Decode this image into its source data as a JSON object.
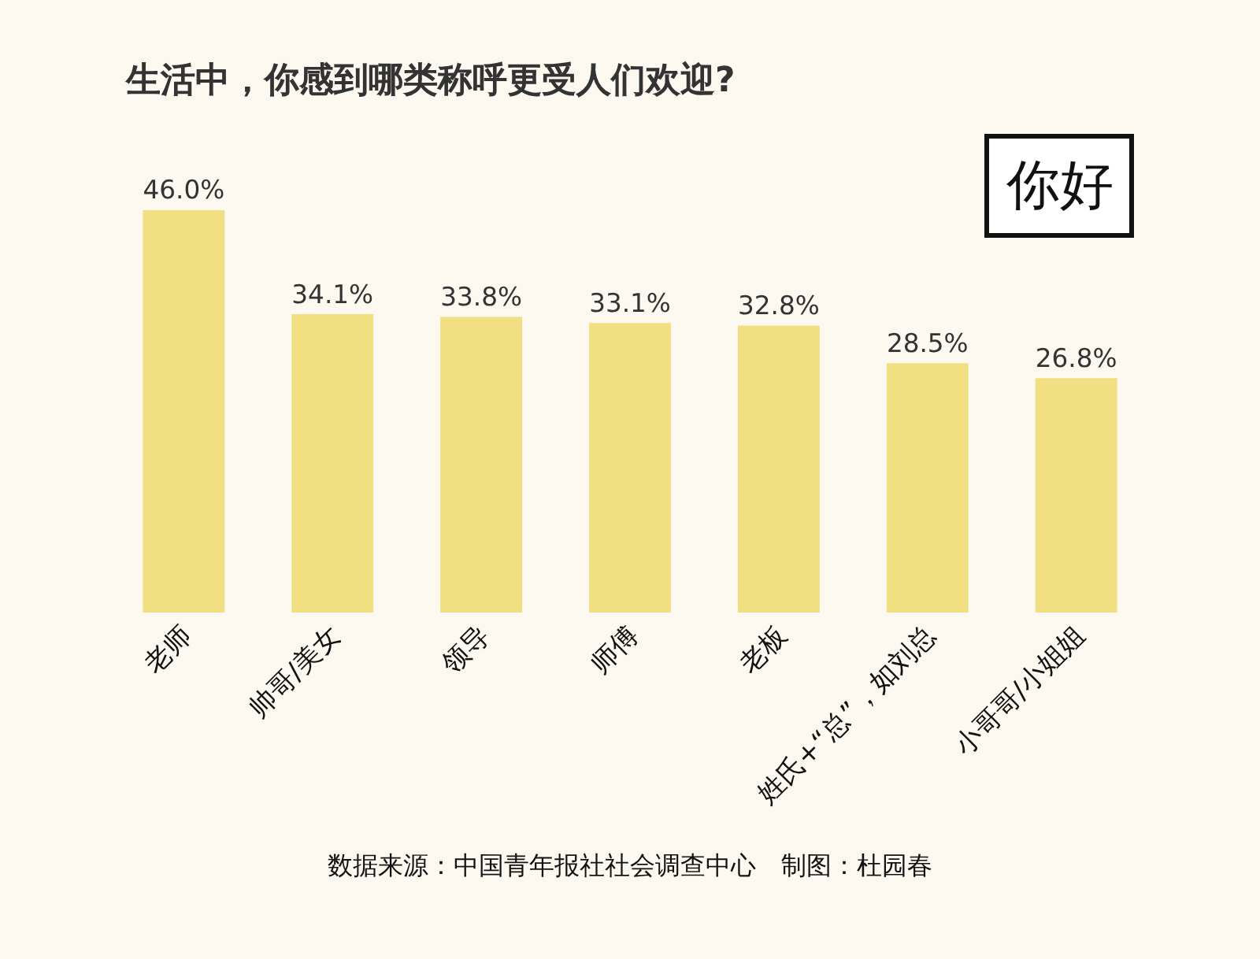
{
  "chart_data": {
    "type": "bar",
    "title": "生活中，你感到哪类称呼更受人们欢迎?",
    "categories": [
      "老师",
      "帅哥/美女",
      "领导",
      "师傅",
      "老板",
      "姓氏+“总”，如刘总",
      "小哥哥/小姐姐"
    ],
    "values": [
      46.0,
      34.1,
      33.8,
      33.1,
      32.8,
      28.5,
      26.8
    ],
    "value_labels": [
      "46.0%",
      "34.1%",
      "33.8%",
      "33.1%",
      "32.8%",
      "28.5%",
      "26.8%"
    ],
    "color": "#f2df82",
    "grid": false,
    "legend": false,
    "tick_labels": "x",
    "annotations": [
      "你好",
      "数据来源：中国青年报社社会调查中心　制图：杜园春"
    ]
  }
}
